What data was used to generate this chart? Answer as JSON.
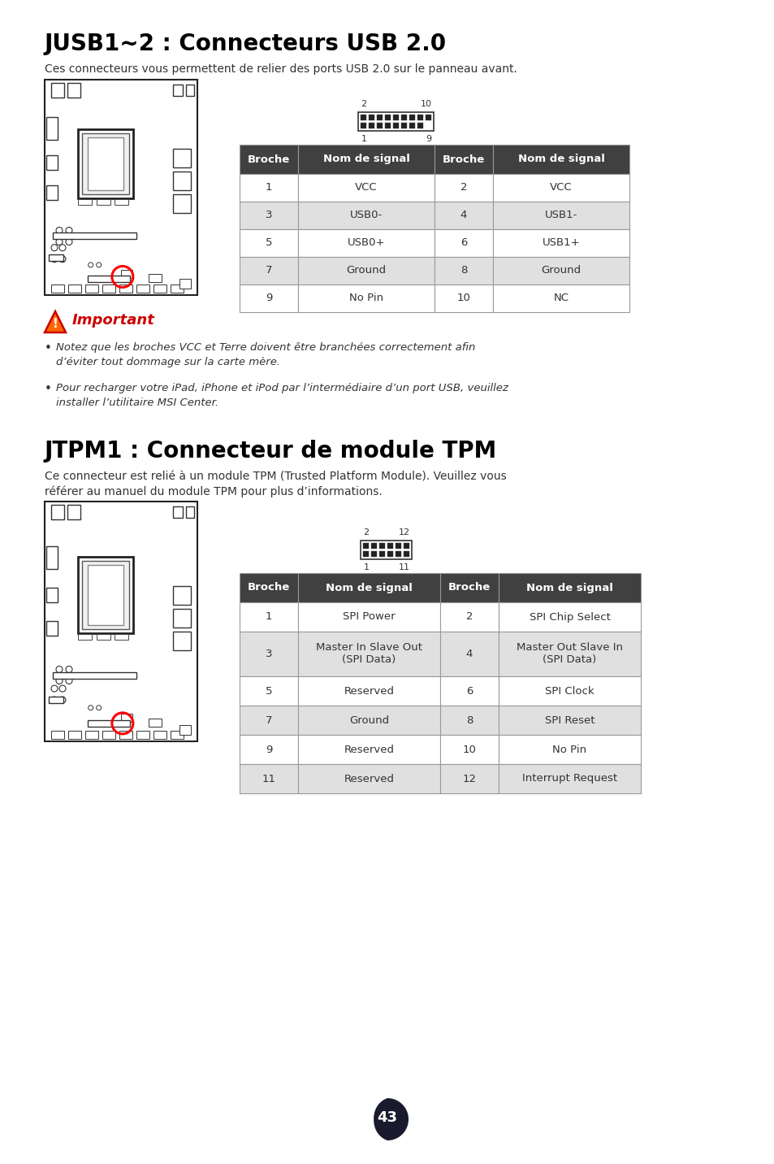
{
  "bg_color": "#ffffff",
  "title1": "JUSB1~2 : Connecteurs USB 2.0",
  "desc1": "Ces connecteurs vous permettent de relier des ports USB 2.0 sur le panneau avant.",
  "usb_table_headers": [
    "Broche",
    "Nom de signal",
    "Broche",
    "Nom de signal"
  ],
  "usb_table_rows": [
    [
      "1",
      "VCC",
      "2",
      "VCC"
    ],
    [
      "3",
      "USB0-",
      "4",
      "USB1-"
    ],
    [
      "5",
      "USB0+",
      "6",
      "USB1+"
    ],
    [
      "7",
      "Ground",
      "8",
      "Ground"
    ],
    [
      "9",
      "No Pin",
      "10",
      "NC"
    ]
  ],
  "usb_pin_label_top_left": "2",
  "usb_pin_label_top_right": "10",
  "usb_pin_label_bot_left": "1",
  "usb_pin_label_bot_right": "9",
  "important_title": "Important",
  "important_bullet1_line1": "Notez que les broches VCC et Terre doivent être branchées correctement afin",
  "important_bullet1_line2": "d’éviter tout dommage sur la carte mère.",
  "important_bullet2_line1": "Pour recharger votre iPad, iPhone et iPod par l’intermédiaire d’un port USB, veuillez",
  "important_bullet2_line2": "installer l’utilitaire MSI Center.",
  "title2": "JTPM1 : Connecteur de module TPM",
  "desc2_line1": "Ce connecteur est relié à un module TPM (Trusted Platform Module). Veuillez vous",
  "desc2_line2": "référer au manuel du module TPM pour plus d’informations.",
  "tpm_table_headers": [
    "Broche",
    "Nom de signal",
    "Broche",
    "Nom de signal"
  ],
  "tpm_table_rows": [
    [
      "1",
      "SPI Power",
      "2",
      "SPI Chip Select"
    ],
    [
      "3",
      "Master In Slave Out\n(SPI Data)",
      "4",
      "Master Out Slave In\n(SPI Data)"
    ],
    [
      "5",
      "Reserved",
      "6",
      "SPI Clock"
    ],
    [
      "7",
      "Ground",
      "8",
      "SPI Reset"
    ],
    [
      "9",
      "Reserved",
      "10",
      "No Pin"
    ],
    [
      "11",
      "Reserved",
      "12",
      "Interrupt Request"
    ]
  ],
  "tpm_pin_label_top_left": "2",
  "tpm_pin_label_top_right": "12",
  "tpm_pin_label_bot_left": "1",
  "tpm_pin_label_bot_right": "11",
  "page_number": "43",
  "header_bg": "#404040",
  "header_fg": "#ffffff",
  "row_odd_bg": "#ffffff",
  "row_even_bg": "#e0e0e0",
  "table_border": "#999999",
  "table_text_color": "#333333",
  "title_color": "#000000",
  "desc_color": "#333333",
  "important_color": "#cc0000",
  "bullet_color": "#333333",
  "triangle_fill": "#ff6600",
  "triangle_edge": "#cc0000",
  "page_badge_color": "#1a1a2e"
}
